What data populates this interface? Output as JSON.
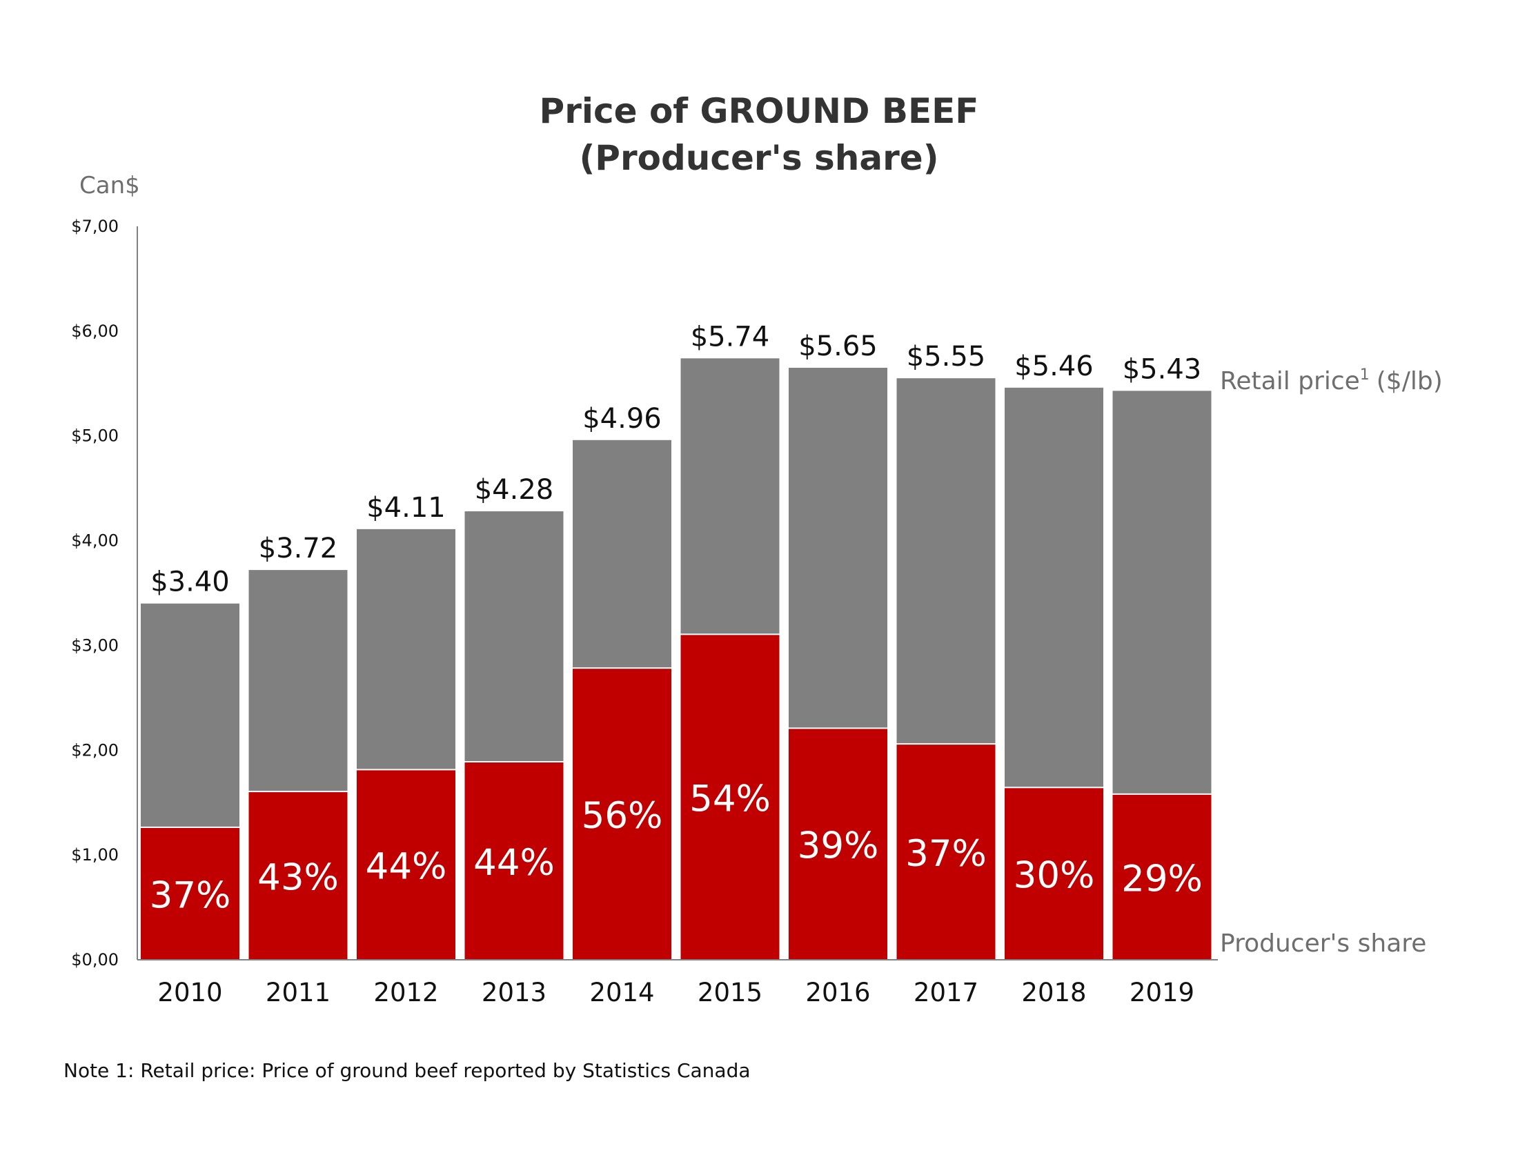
{
  "chart_data": {
    "type": "bar",
    "stacked": true,
    "title_line1": "Price of GROUND BEEF",
    "title_line2": "(Producer's share)",
    "ylabel": "Can$",
    "ylim": [
      0,
      7
    ],
    "yticks": [
      "$0,00",
      "$1,00",
      "$2,00",
      "$3,00",
      "$4,00",
      "$5,00",
      "$6,00",
      "$7,00"
    ],
    "categories": [
      "2010",
      "2011",
      "2012",
      "2013",
      "2014",
      "2015",
      "2016",
      "2017",
      "2018",
      "2019"
    ],
    "retail_price": [
      3.4,
      3.72,
      4.11,
      4.28,
      4.96,
      5.74,
      5.65,
      5.55,
      5.46,
      5.43
    ],
    "retail_price_labels": [
      "$3.40",
      "$3.72",
      "$4.11",
      "$4.28",
      "$4.96",
      "$5.74",
      "$5.65",
      "$5.55",
      "$5.46",
      "$5.43"
    ],
    "producer_share_pct": [
      37,
      43,
      44,
      44,
      56,
      54,
      39,
      37,
      30,
      29
    ],
    "producer_share_labels": [
      "37%",
      "43%",
      "44%",
      "44%",
      "56%",
      "54%",
      "39%",
      "37%",
      "30%",
      "29%"
    ],
    "series": [
      {
        "name": "Producer's share",
        "color": "#c00000"
      },
      {
        "name": "Retail price",
        "superscript": "1",
        "suffix": "($/lb)",
        "color": "#808080"
      }
    ],
    "note": "Note 1: Retail price: Price of ground beef reported by Statistics Canada"
  }
}
